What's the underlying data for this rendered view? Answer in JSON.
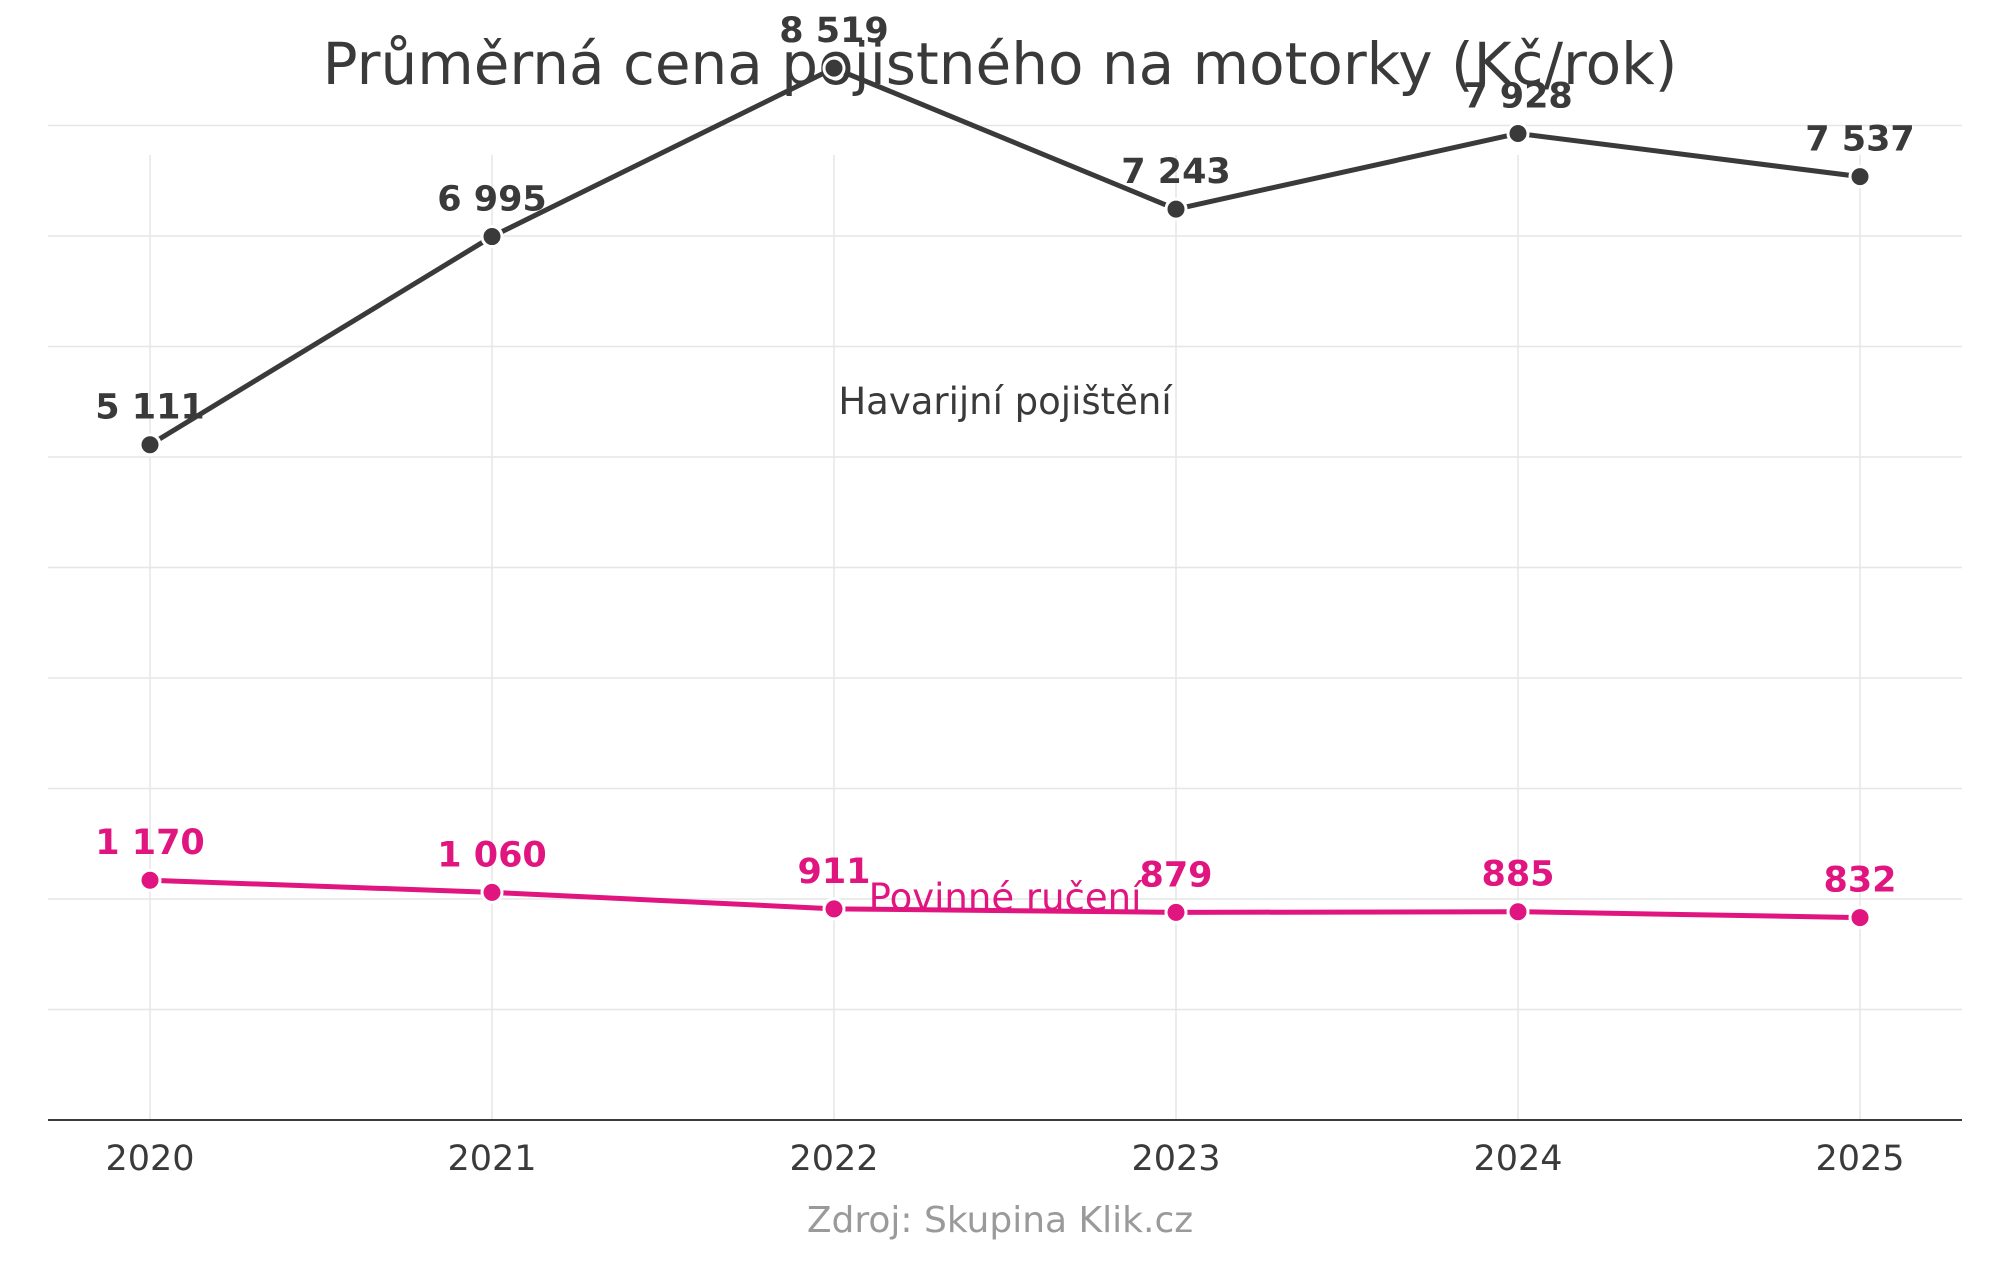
{
  "chart_data": {
    "type": "line",
    "title": "Průměrná cena pojistného na motorky (Kč/rok)",
    "source": "Zdroj: Skupina Klik.cz",
    "xlabel": "",
    "ylabel": "",
    "x": [
      "2020",
      "2021",
      "2022",
      "2023",
      "2024",
      "2025"
    ],
    "ylim": [
      -1000,
      9000
    ],
    "grid": true,
    "series": [
      {
        "name": "Havarijní pojištění",
        "color": "#3a3a3a",
        "values": [
          5111,
          6995,
          8519,
          7243,
          7928,
          7537
        ],
        "labels": [
          "5 111",
          "6 995",
          "8 519",
          "7 243",
          "7 928",
          "7 537"
        ]
      },
      {
        "name": "Povinné ručení",
        "color": "#e0157f",
        "values": [
          1170,
          1060,
          911,
          879,
          885,
          832
        ],
        "labels": [
          "1 170",
          "1 060",
          "911",
          "879",
          "885",
          "832"
        ]
      }
    ]
  }
}
